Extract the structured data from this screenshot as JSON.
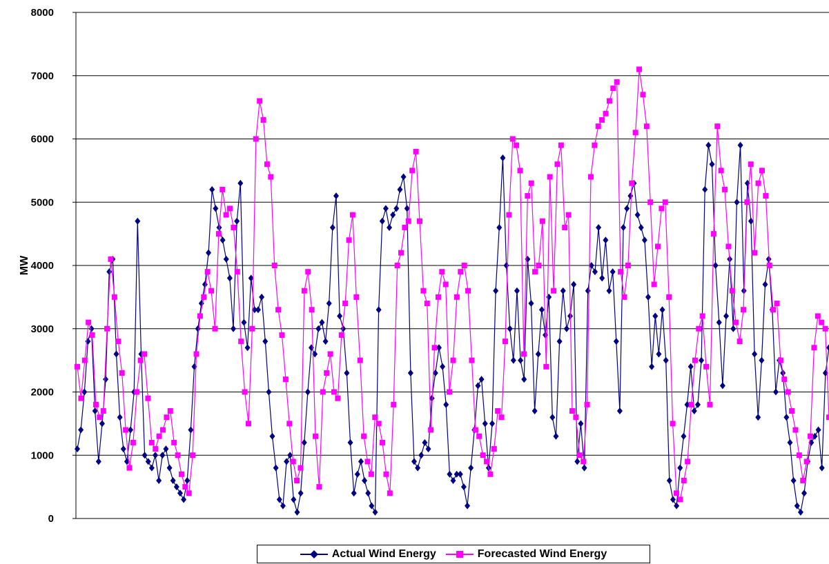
{
  "chart_data": {
    "type": "line",
    "title": "",
    "xlabel": "",
    "ylabel": "MW",
    "ylim": [
      0,
      8000
    ],
    "yticks": [
      0,
      1000,
      2000,
      3000,
      4000,
      5000,
      6000,
      7000,
      8000
    ],
    "ytick_labels": [
      "0",
      "1000",
      "2000",
      "3000",
      "4000",
      "5000",
      "6000",
      "7000",
      "8000"
    ],
    "grid": "horizontal",
    "legend_position": "bottom",
    "x_index_range": [
      0,
      160
    ],
    "series": [
      {
        "name": "Actual Wind Energy",
        "color": "#000080",
        "marker": "diamond",
        "y": [
          1100,
          1400,
          2000,
          2800,
          3000,
          1700,
          900,
          1500,
          2200,
          3900,
          4100,
          2600,
          1600,
          1100,
          900,
          1400,
          2000,
          4700,
          2600,
          1000,
          900,
          800,
          1000,
          600,
          1000,
          1100,
          800,
          600,
          500,
          400,
          300,
          600,
          1400,
          2400,
          3000,
          3400,
          3700,
          4200,
          5200,
          4900,
          4600,
          4400,
          4100,
          3800,
          3000,
          4700,
          5300,
          3100,
          2700,
          3800,
          3300,
          3300,
          3500,
          2800,
          2000,
          1300,
          800,
          300,
          200,
          900,
          1000,
          300,
          100,
          400,
          1200,
          2000,
          2700,
          2600,
          3000,
          3100,
          2800,
          3400,
          4600,
          5100,
          3200,
          3000,
          2300,
          1200,
          400,
          700,
          900,
          600,
          400,
          200,
          100,
          3300,
          4700,
          4900,
          4600,
          4800,
          4900,
          5200,
          5400,
          4900,
          2300,
          900,
          800,
          1000,
          1200,
          1100,
          1900,
          2300,
          2700,
          2400,
          1800,
          700,
          600,
          700,
          700,
          500,
          200,
          800,
          1400,
          2100,
          2200,
          1500,
          800,
          1500,
          3600,
          4600,
          5700,
          4000,
          3000,
          2500,
          3600,
          2500,
          2200,
          4100,
          3400,
          1700,
          2600,
          3300,
          2900,
          3500,
          1600,
          1300,
          2800,
          3600,
          3000,
          3200,
          3700,
          900,
          1500,
          800,
          3600,
          4000,
          3900,
          4600,
          3800,
          4400,
          3600,
          3900,
          2800,
          1700,
          4600,
          4900,
          5100,
          5300,
          4800,
          4600,
          4400,
          3500,
          2400,
          3200,
          2600,
          3300,
          2500,
          600,
          300,
          200,
          800,
          1300,
          1800,
          2400,
          1700,
          1800,
          2500,
          5200,
          5900,
          5600,
          4000,
          3100,
          2100,
          3200,
          4100,
          3000,
          5000,
          5900,
          3600,
          5300,
          4700,
          2600,
          1600,
          2500,
          3700,
          4100,
          3300,
          2000,
          2500,
          2300,
          1600,
          1200,
          600,
          200,
          100,
          400,
          900,
          1200,
          1300,
          1400,
          800,
          2300,
          2700
        ]
      },
      {
        "name": "Forecasted Wind Energy",
        "color": "#FF00FF",
        "marker": "square",
        "y": [
          2400,
          1900,
          2500,
          3100,
          2900,
          1800,
          1600,
          1700,
          3000,
          4100,
          3500,
          2800,
          2300,
          1400,
          800,
          1200,
          2000,
          2500,
          2600,
          1900,
          1200,
          1100,
          1300,
          1400,
          1600,
          1700,
          1200,
          1000,
          700,
          500,
          400,
          1000,
          2600,
          3200,
          3500,
          3900,
          3600,
          3000,
          4500,
          5200,
          4800,
          4900,
          4600,
          3900,
          2800,
          2000,
          1500,
          3000,
          6000,
          6600,
          6300,
          5600,
          5400,
          4000,
          3300,
          2900,
          2200,
          1500,
          900,
          600,
          800,
          3600,
          3900,
          3300,
          1300,
          500,
          2000,
          2300,
          2600,
          2000,
          1900,
          2900,
          3400,
          4400,
          4800,
          3500,
          2500,
          1300,
          900,
          700,
          1600,
          1500,
          1200,
          700,
          400,
          1800,
          4000,
          4200,
          4600,
          4700,
          5500,
          5800,
          4700,
          3600,
          3400,
          1400,
          2700,
          3500,
          3900,
          3700,
          2000,
          2500,
          3500,
          3900,
          4000,
          3600,
          2500,
          1400,
          1300,
          1000,
          900,
          700,
          1100,
          1700,
          1600,
          2800,
          4800,
          6000,
          5900,
          5500,
          2600,
          5100,
          5300,
          3900,
          4000,
          4700,
          2400,
          5400,
          3600,
          5600,
          5900,
          4600,
          4800,
          1700,
          1600,
          1000,
          900,
          1800,
          5400,
          5900,
          6200,
          6300,
          6400,
          6600,
          6800,
          6900,
          3900,
          3500,
          4000,
          5300,
          6100,
          7100,
          6700,
          6200,
          5000,
          3700,
          4300,
          4900,
          5000,
          3500,
          1500,
          400,
          300,
          600,
          900,
          1800,
          2500,
          3000,
          3200,
          2400,
          1800,
          4500,
          6200,
          5500,
          5200,
          4300,
          3600,
          3100,
          2800,
          3300,
          5000,
          5600,
          4200,
          5300,
          5500,
          5100,
          4000,
          3300,
          3400,
          2500,
          2200,
          2000,
          1700,
          1400,
          1000,
          600,
          900,
          1300,
          2700,
          3200,
          3100,
          3000,
          1600
        ]
      }
    ]
  }
}
